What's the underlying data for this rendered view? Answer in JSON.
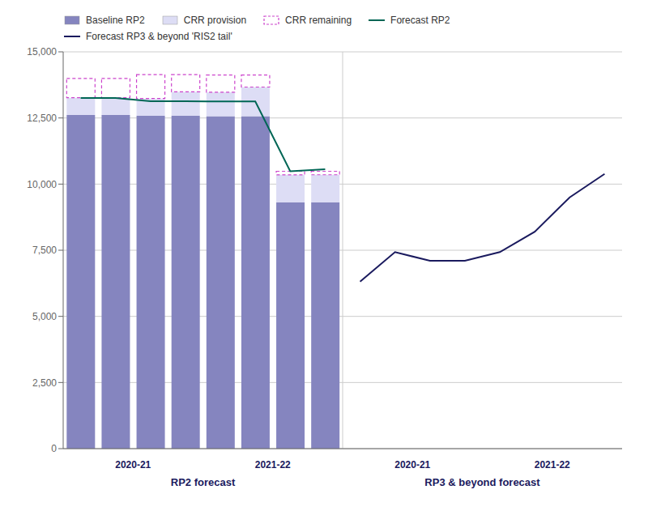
{
  "chart_data": {
    "type": "bar",
    "stacked": true,
    "grid": true,
    "legend": "top",
    "categories": [
      null,
      null,
      null,
      null,
      null,
      null,
      null,
      null,
      null,
      null,
      null,
      null,
      null,
      null,
      null,
      null
    ],
    "series": [
      {
        "name": "Baseline RP2",
        "type": "bar",
        "color": "#8585BF",
        "values": [
          12614,
          12614,
          12584,
          12584,
          12566,
          12566,
          9314,
          9314,
          null,
          null,
          null,
          null,
          null,
          null,
          null,
          null
        ]
      },
      {
        "name": "CRR provision",
        "type": "bar",
        "color": "#DDDDF5",
        "values": [
          655,
          655,
          655,
          905,
          905,
          1103,
          1037,
          1041,
          null,
          null,
          null,
          null,
          null,
          null,
          null,
          null
        ]
      },
      {
        "name": "CRR remaining",
        "type": "bar",
        "color": "#CC44CC",
        "line_style": "dashed",
        "values": [
          727,
          727,
          902,
          652,
          652,
          454,
          134,
          130,
          null,
          null,
          null,
          null,
          null,
          null,
          null,
          null
        ]
      },
      {
        "name": "Forecast RP2",
        "type": "line",
        "color": "#006655",
        "values": [
          13256,
          13256,
          13136,
          13136,
          13123,
          13123,
          10485,
          10559,
          null,
          null,
          null,
          null,
          null,
          null,
          null,
          null
        ]
      },
      {
        "name": "Forecast RP3 & beyond 'RIS2 tail'",
        "type": "line",
        "color": "#1A1A5E",
        "values": [
          null,
          null,
          null,
          null,
          null,
          null,
          null,
          null,
          6315,
          7430,
          7100,
          7100,
          7430,
          8200,
          9500,
          10384
        ]
      }
    ],
    "ylim": [
      0,
      15000
    ],
    "yticks": [
      0,
      {
        "value": 2500,
        "label": "2,500"
      },
      {
        "value": 5000,
        "label": "5,000"
      },
      {
        "value": 7500,
        "label": "7,500"
      },
      {
        "value": 10000,
        "label": "10,000"
      },
      {
        "value": 12500,
        "label": "12,500"
      },
      {
        "value": 15000,
        "label": "15,000"
      }
    ],
    "annotations": [
      "2020-21",
      "2021-22",
      "2020-21",
      "2021-22",
      "RP2 forecast",
      "RP3 & beyond forecast"
    ]
  }
}
